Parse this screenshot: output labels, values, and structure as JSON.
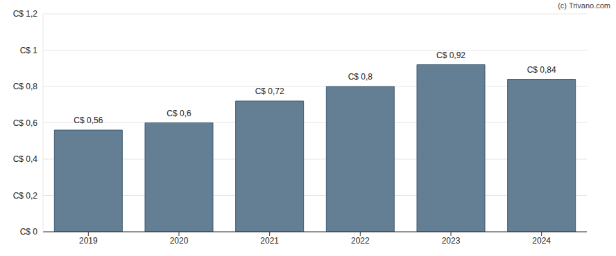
{
  "chart_data": {
    "type": "bar",
    "source": "(c) Trivano.com",
    "categories": [
      "2019",
      "2020",
      "2021",
      "2022",
      "2023",
      "2024"
    ],
    "values": [
      0.56,
      0.6,
      0.72,
      0.8,
      0.92,
      0.84
    ],
    "value_labels": [
      "C$ 0,56",
      "C$ 0,6",
      "C$ 0,72",
      "C$ 0,8",
      "C$ 0,92",
      "C$ 0,84"
    ],
    "data_labels": true,
    "color": "#647f94",
    "ylim": [
      0,
      1.2
    ],
    "yticks": [
      {
        "value": 0,
        "label": "C$ 0"
      },
      {
        "value": 0.2,
        "label": "C$ 0,2"
      },
      {
        "value": 0.4,
        "label": "C$ 0,4"
      },
      {
        "value": 0.6,
        "label": "C$ 0,6"
      },
      {
        "value": 0.8,
        "label": "C$ 0,8"
      },
      {
        "value": 1,
        "label": "C$ 1"
      },
      {
        "value": 1.2,
        "label": "C$ 1,2"
      }
    ],
    "grid": true
  }
}
